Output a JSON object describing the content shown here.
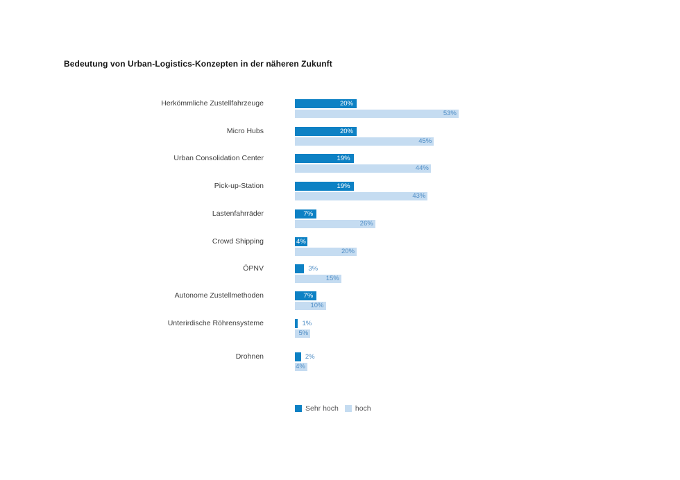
{
  "title": "Bedeutung von Urban-Logistics-Konzepten in der näheren Zukunft",
  "chart_data": {
    "type": "bar",
    "orientation": "horizontal",
    "title": "Bedeutung von Urban-Logistics-Konzepten in der näheren Zukunft",
    "categories": [
      "Herkömmliche Zustellfahrzeuge",
      "Micro Hubs",
      "Urban Consolidation Center",
      "Pick-up-Station",
      "Lastenfahrräder",
      "Crowd Shipping",
      "ÖPNV",
      "Autonome Zustellmethoden",
      "Unterirdische Röhrensysteme",
      "Drohnen"
    ],
    "series": [
      {
        "name": "Sehr hoch",
        "color": "#0d81c4",
        "values": [
          20,
          20,
          19,
          19,
          7,
          4,
          3,
          7,
          1,
          2
        ]
      },
      {
        "name": "hoch",
        "color": "#c5dcf1",
        "values": [
          53,
          45,
          44,
          43,
          26,
          20,
          15,
          10,
          5,
          4
        ]
      }
    ],
    "unit": "%",
    "xlim": [
      0,
      60
    ],
    "grid": false,
    "legend_position": "bottom",
    "value_labels": "inside-end, outside when bar too small"
  },
  "legend": {
    "items": [
      {
        "label": "Sehr hoch",
        "color": "#0d81c4"
      },
      {
        "label": "hoch",
        "color": "#c5dcf1"
      }
    ]
  },
  "colors": {
    "series_sehr_hoch": "#0d81c4",
    "series_hoch": "#c5dcf1",
    "value_label_blue": "#4f8dc5",
    "value_label_white": "#ffffff",
    "category_label": "#3c3c3c",
    "legend_text": "#58585a",
    "title_text": "#151515",
    "background": "#ffffff"
  }
}
